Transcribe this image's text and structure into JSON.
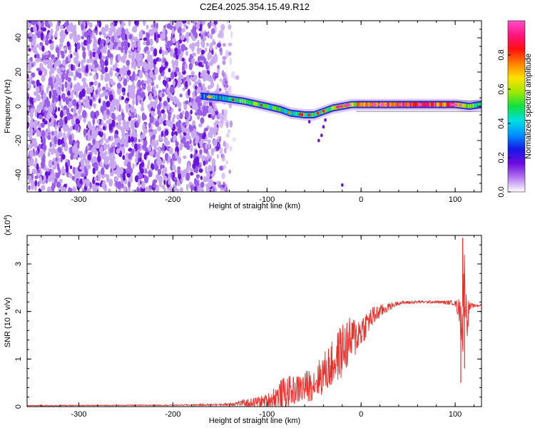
{
  "title": "C2E4.2025.354.15.49.R12",
  "colors": {
    "snr_line": "#e8302a",
    "axis": "#000000",
    "spectro_background": "#7a3ff0",
    "spectro_stripe": "#2a28e0"
  },
  "chart_data": [
    {
      "type": "heatmap",
      "name": "spectrogram",
      "xlabel": "Height of straight line (km)",
      "ylabel": "Frequency (Hz)",
      "xlim": [
        -355,
        128
      ],
      "ylim": [
        -50,
        50
      ],
      "x_ticks": [
        -300,
        -200,
        -100,
        0,
        100
      ],
      "x_tick_labels": [
        "-300",
        "-200",
        "-100",
        "0",
        "100"
      ],
      "y_ticks": [
        -40,
        -20,
        0,
        20,
        40
      ],
      "y_tick_labels": [
        "-40",
        "-20",
        "0",
        "20",
        "40"
      ],
      "signal_ridge": {
        "x": [
          -170,
          -150,
          -125,
          -100,
          -85,
          -75,
          -60,
          -50,
          -40,
          -30,
          -20,
          -10,
          0,
          20,
          40,
          60,
          80,
          100,
          115,
          128
        ],
        "freq": [
          6,
          5,
          3,
          0,
          -2,
          -4,
          -5,
          -5,
          -3,
          -1,
          0,
          1,
          1,
          1,
          1,
          1,
          1,
          1,
          0,
          1
        ],
        "amplitude": [
          0.3,
          0.4,
          0.55,
          0.5,
          0.45,
          0.4,
          0.5,
          0.45,
          0.5,
          0.55,
          0.6,
          0.65,
          0.7,
          0.75,
          0.8,
          0.85,
          0.8,
          0.75,
          0.5,
          0.5
        ]
      },
      "noise_region_x": [
        -355,
        -140
      ]
    },
    {
      "type": "colorbar",
      "name": "amplitude-colorbar",
      "label": "Normalized spectral amplitude",
      "range": [
        0,
        1
      ],
      "ticks": [
        0.0,
        0.2,
        0.4,
        0.6,
        0.8
      ],
      "tick_labels": [
        "0.0",
        "0.2",
        "0.4",
        "0.6",
        "0.8"
      ],
      "stops": [
        "#ffffff",
        "#b478ee",
        "#6c0ae0",
        "#1418e6",
        "#0090ff",
        "#00e0e0",
        "#10e040",
        "#a0e800",
        "#ffe000",
        "#ff8000",
        "#ff1010",
        "#ff1480",
        "#ff50c8"
      ]
    },
    {
      "type": "line",
      "name": "snr",
      "xlabel": "Height of straight line (km)",
      "ylabel": "SNR (10 * v/v)",
      "multiplier_label": "(x10",
      "multiplier_exp": "4",
      "xlim": [
        -355,
        128
      ],
      "ylim": [
        0,
        3.6
      ],
      "x_ticks": [
        -300,
        -200,
        -100,
        0,
        100
      ],
      "x_tick_labels": [
        "-300",
        "-200",
        "-100",
        "0",
        "100"
      ],
      "y_ticks": [
        0,
        1,
        2,
        3
      ],
      "y_tick_labels": [
        "0",
        "1",
        "2",
        "3"
      ],
      "envelope_x": [
        -355,
        -200,
        -150,
        -120,
        -100,
        -90,
        -80,
        -70,
        -60,
        -50,
        -40,
        -30,
        -20,
        -10,
        0,
        10,
        20,
        30,
        40,
        60,
        80,
        100,
        105,
        108,
        110,
        112,
        115,
        120,
        128
      ],
      "envelope_y": [
        0.02,
        0.03,
        0.04,
        0.08,
        0.12,
        0.2,
        0.3,
        0.35,
        0.4,
        0.5,
        0.7,
        0.9,
        1.2,
        1.4,
        1.6,
        1.85,
        2.0,
        2.1,
        2.18,
        2.2,
        2.2,
        2.18,
        2.0,
        1.6,
        2.9,
        1.8,
        2.1,
        2.12,
        2.13
      ],
      "noise_amplitude": [
        0.01,
        0.01,
        0.02,
        0.08,
        0.15,
        0.3,
        0.35,
        0.3,
        0.35,
        0.35,
        0.45,
        0.5,
        0.6,
        0.5,
        0.35,
        0.25,
        0.15,
        0.08,
        0.04,
        0.03,
        0.03,
        0.05,
        0.3,
        0.8,
        0.6,
        0.6,
        0.1,
        0.03,
        0.02
      ],
      "spikes": [
        {
          "x": 106,
          "y": 0.5
        },
        {
          "x": 108,
          "y": 3.55
        },
        {
          "x": 110,
          "y": 0.8
        }
      ]
    }
  ]
}
